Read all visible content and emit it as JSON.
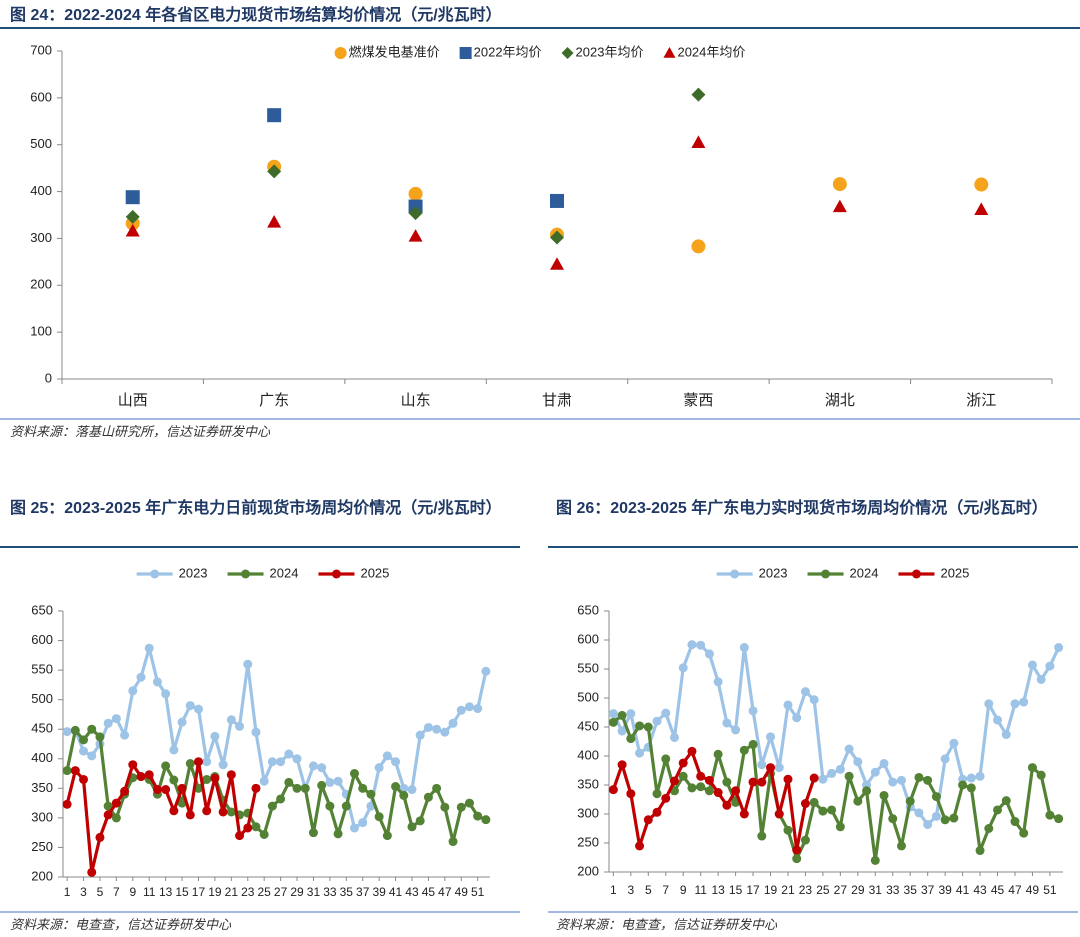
{
  "chart_data": [
    {
      "type": "scatter",
      "title": "图 24：2022-2024 年各省区电力现货市场结算均价情况（元/兆瓦时）",
      "source": "资料来源：落基山研究所，信达证券研发中心",
      "categories": [
        "山西",
        "广东",
        "山东",
        "甘肃",
        "蒙西",
        "湖北",
        "浙江"
      ],
      "series": [
        {
          "name": "燃煤发电基准价",
          "color": "#f5a31a",
          "marker": "circle",
          "values": [
            332,
            453,
            395,
            308,
            283,
            416,
            415
          ]
        },
        {
          "name": "2022年均价",
          "color": "#2e5b9a",
          "marker": "square",
          "values": [
            388,
            563,
            368,
            380,
            null,
            null,
            null
          ]
        },
        {
          "name": "2023年均价",
          "color": "#3f6b2a",
          "marker": "diamond",
          "values": [
            346,
            443,
            354,
            302,
            607,
            null,
            null
          ]
        },
        {
          "name": "2024年均价",
          "color": "#c00000",
          "marker": "triangle",
          "values": [
            316,
            335,
            305,
            245,
            505,
            368,
            362
          ]
        }
      ],
      "ylim": [
        0,
        700
      ],
      "yticks": [
        0,
        100,
        200,
        300,
        400,
        500,
        600,
        700
      ],
      "grid": false,
      "legend": "top"
    },
    {
      "type": "line",
      "title": "图 25：2023-2025 年广东电力日前现货市场周均价情况（元/兆瓦时）",
      "source": "资料来源：电查查，信达证券研发中心",
      "x": [
        1,
        2,
        3,
        4,
        5,
        6,
        7,
        8,
        9,
        10,
        11,
        12,
        13,
        14,
        15,
        16,
        17,
        18,
        19,
        20,
        21,
        22,
        23,
        24,
        25,
        26,
        27,
        28,
        29,
        30,
        31,
        32,
        33,
        34,
        35,
        36,
        37,
        38,
        39,
        40,
        41,
        42,
        43,
        44,
        45,
        46,
        47,
        48,
        49,
        50,
        51,
        52
      ],
      "series": [
        {
          "name": "2023",
          "color": "#9dc3e6",
          "values": [
            446,
            448,
            413,
            405,
            425,
            460,
            468,
            440,
            515,
            538,
            587,
            530,
            510,
            415,
            462,
            490,
            484,
            395,
            438,
            390,
            466,
            455,
            560,
            445,
            362,
            395,
            395,
            408,
            400,
            350,
            388,
            385,
            360,
            362,
            340,
            283,
            292,
            320,
            385,
            405,
            395,
            350,
            348,
            440,
            453,
            450,
            445,
            460,
            482,
            488,
            485,
            548
          ]
        },
        {
          "name": "2024",
          "color": "#548235",
          "values": [
            380,
            448,
            432,
            450,
            437,
            320,
            300,
            340,
            368,
            370,
            365,
            340,
            388,
            364,
            325,
            392,
            350,
            365,
            370,
            330,
            310,
            305,
            308,
            285,
            272,
            320,
            332,
            360,
            350,
            350,
            275,
            355,
            320,
            273,
            320,
            375,
            350,
            340,
            302,
            270,
            353,
            338,
            285,
            295,
            335,
            350,
            318,
            260,
            318,
            325,
            303,
            297
          ]
        },
        {
          "name": "2025",
          "color": "#c00000",
          "values": [
            323,
            380,
            365,
            208,
            267,
            305,
            325,
            345,
            390,
            370,
            373,
            348,
            348,
            312,
            350,
            305,
            395,
            312,
            367,
            310,
            373,
            270,
            283,
            350,
            null,
            null,
            null,
            null,
            null,
            null,
            null,
            null,
            null,
            null,
            null,
            null,
            null,
            null,
            null,
            null,
            null,
            null,
            null,
            null,
            null,
            null,
            null,
            null,
            null,
            null,
            null,
            null
          ]
        }
      ],
      "xlim": [
        0.5,
        52.5
      ],
      "xticks": [
        1,
        3,
        5,
        7,
        9,
        11,
        13,
        15,
        17,
        19,
        21,
        23,
        25,
        27,
        29,
        31,
        33,
        35,
        37,
        39,
        41,
        43,
        45,
        47,
        49,
        51
      ],
      "ylim": [
        200,
        650
      ],
      "yticks": [
        200,
        250,
        300,
        350,
        400,
        450,
        500,
        550,
        600,
        650
      ],
      "grid": false,
      "legend": "top"
    },
    {
      "type": "line",
      "title": "图 26：2023-2025 年广东电力实时现货市场周均价情况（元/兆瓦时）",
      "source": "资料来源：电查查，信达证券研发中心",
      "x": [
        1,
        2,
        3,
        4,
        5,
        6,
        7,
        8,
        9,
        10,
        11,
        12,
        13,
        14,
        15,
        16,
        17,
        18,
        19,
        20,
        21,
        22,
        23,
        24,
        25,
        26,
        27,
        28,
        29,
        30,
        31,
        32,
        33,
        34,
        35,
        36,
        37,
        38,
        39,
        40,
        41,
        42,
        43,
        44,
        45,
        46,
        47,
        48,
        49,
        50,
        51,
        52
      ],
      "series": [
        {
          "name": "2023",
          "color": "#9dc3e6",
          "values": [
            473,
            443,
            473,
            405,
            415,
            460,
            474,
            432,
            552,
            592,
            591,
            576,
            528,
            457,
            445,
            587,
            478,
            385,
            433,
            380,
            488,
            466,
            511,
            497,
            360,
            370,
            377,
            412,
            390,
            350,
            372,
            387,
            355,
            358,
            312,
            302,
            282,
            296,
            395,
            422,
            360,
            362,
            365,
            490,
            462,
            437,
            490,
            493,
            557,
            532,
            555,
            587
          ]
        },
        {
          "name": "2024",
          "color": "#548235",
          "values": [
            458,
            470,
            430,
            452,
            450,
            335,
            395,
            340,
            365,
            345,
            347,
            340,
            403,
            355,
            320,
            410,
            420,
            262,
            370,
            300,
            272,
            223,
            255,
            320,
            305,
            307,
            278,
            365,
            322,
            340,
            220,
            332,
            292,
            245,
            322,
            363,
            358,
            330,
            290,
            293,
            350,
            345,
            237,
            275,
            307,
            323,
            287,
            267,
            380,
            367,
            298,
            292
          ]
        },
        {
          "name": "2025",
          "color": "#c00000",
          "values": [
            342,
            385,
            335,
            245,
            290,
            303,
            327,
            357,
            388,
            408,
            365,
            358,
            337,
            315,
            340,
            300,
            355,
            355,
            380,
            300,
            360,
            238,
            318,
            362,
            null,
            null,
            null,
            null,
            null,
            null,
            null,
            null,
            null,
            null,
            null,
            null,
            null,
            null,
            null,
            null,
            null,
            null,
            null,
            null,
            null,
            null,
            null,
            null,
            null,
            null,
            null,
            null
          ]
        }
      ],
      "xlim": [
        0.5,
        52.5
      ],
      "xticks": [
        1,
        3,
        5,
        7,
        9,
        11,
        13,
        15,
        17,
        19,
        21,
        23,
        25,
        27,
        29,
        31,
        33,
        35,
        37,
        39,
        41,
        43,
        45,
        47,
        49,
        51
      ],
      "ylim": [
        200,
        650
      ],
      "yticks": [
        200,
        250,
        300,
        350,
        400,
        450,
        500,
        550,
        600,
        650
      ],
      "grid": false,
      "legend": "top"
    }
  ]
}
